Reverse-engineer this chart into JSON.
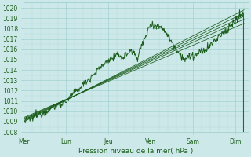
{
  "bg_color": "#cce8e8",
  "grid_color": "#99cccc",
  "plot_bg": "#cce8e8",
  "line_color": "#1a5c1a",
  "ylim": [
    1008,
    1020.5
  ],
  "yticks": [
    1008,
    1009,
    1010,
    1011,
    1012,
    1013,
    1014,
    1015,
    1016,
    1017,
    1018,
    1019,
    1020
  ],
  "xlabel": "Pression niveau de la mer( hPa )",
  "day_labels": [
    "Mer",
    "Lun",
    "Jeu",
    "Ven",
    "Sam",
    "Dim"
  ],
  "day_positions": [
    0,
    1,
    2,
    3,
    4,
    5
  ],
  "tick_fontsize": 5.5,
  "label_fontsize": 6.5,
  "num_points": 400,
  "xlim": [
    0,
    5.3
  ]
}
